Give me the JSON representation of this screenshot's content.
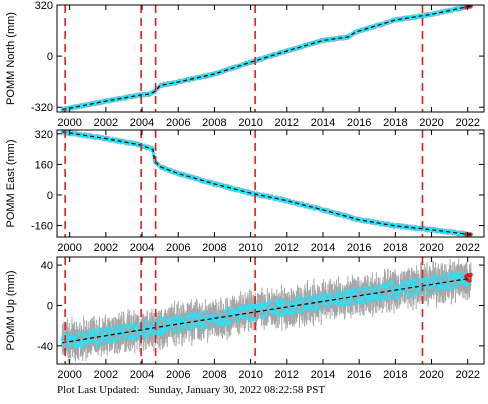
{
  "footer": {
    "label": "Plot Last Updated:",
    "timestamp": "Sunday, January 30, 2022 08:22:58 PST"
  },
  "colors": {
    "data": "#1ee6ff",
    "error_bars": "#a6a6a6",
    "trend": "#000000",
    "offsets": "#e11d1d",
    "recent": "#e11d1d"
  },
  "chart_data": [
    {
      "type": "scatter",
      "ylabel": "POMM North (mm)",
      "xlim": [
        1999.3,
        2022.9
      ],
      "ylim": [
        -350,
        320
      ],
      "yticks": [
        -320,
        0,
        320
      ],
      "xticks": [
        2000,
        2002,
        2004,
        2006,
        2008,
        2010,
        2012,
        2014,
        2016,
        2018,
        2020,
        2022
      ],
      "offsets": [
        1999.75,
        2003.95,
        2004.75,
        2010.25,
        2019.5
      ],
      "series": [
        {
          "x": [
            1999.6,
            2002.0,
            2003.9,
            2004.4,
            2004.7,
            2005.0,
            2006.0,
            2008.0,
            2010.0,
            2012.0,
            2014.0,
            2015.4,
            2015.8,
            2018.0,
            2020.0,
            2022.2
          ],
          "y": [
            -335,
            -282,
            -244,
            -238,
            -222,
            -184,
            -162,
            -112,
            -38,
            32,
            98,
            120,
            150,
            226,
            262,
            314
          ],
          "noise": 3
        }
      ]
    },
    {
      "type": "scatter",
      "ylabel": "POMM East (mm)",
      "xlim": [
        1999.3,
        2022.9
      ],
      "ylim": [
        -220,
        340
      ],
      "yticks": [
        -160,
        0,
        160,
        320
      ],
      "xticks": [
        2000,
        2002,
        2004,
        2006,
        2008,
        2010,
        2012,
        2014,
        2016,
        2018,
        2020,
        2022
      ],
      "offsets": [
        1999.75,
        2003.95,
        2004.75,
        2010.25,
        2019.5
      ],
      "series": [
        {
          "x": [
            1999.6,
            2002.0,
            2003.9,
            2004.6,
            2004.7,
            2005.0,
            2006.0,
            2008.0,
            2010.0,
            2012.0,
            2014.0,
            2016.0,
            2018.0,
            2020.0,
            2022.2
          ],
          "y": [
            330,
            295,
            262,
            238,
            176,
            148,
            112,
            58,
            10,
            -30,
            -78,
            -130,
            -162,
            -182,
            -208
          ],
          "noise": 4
        }
      ]
    },
    {
      "type": "scatter",
      "ylabel": "POMM Up (mm)",
      "xlim": [
        1999.3,
        2022.9
      ],
      "ylim": [
        -58,
        48
      ],
      "yticks": [
        -40,
        0,
        40
      ],
      "xticks": [
        2000,
        2002,
        2004,
        2006,
        2008,
        2010,
        2012,
        2014,
        2016,
        2018,
        2020,
        2022
      ],
      "offsets": [
        1999.75,
        2003.95,
        2004.75,
        2010.25,
        2019.5
      ],
      "series": [
        {
          "x": [
            1999.6,
            2004.7,
            2022.2
          ],
          "y": [
            -37,
            -22,
            27
          ],
          "noise": 8,
          "error": 12
        }
      ]
    }
  ]
}
